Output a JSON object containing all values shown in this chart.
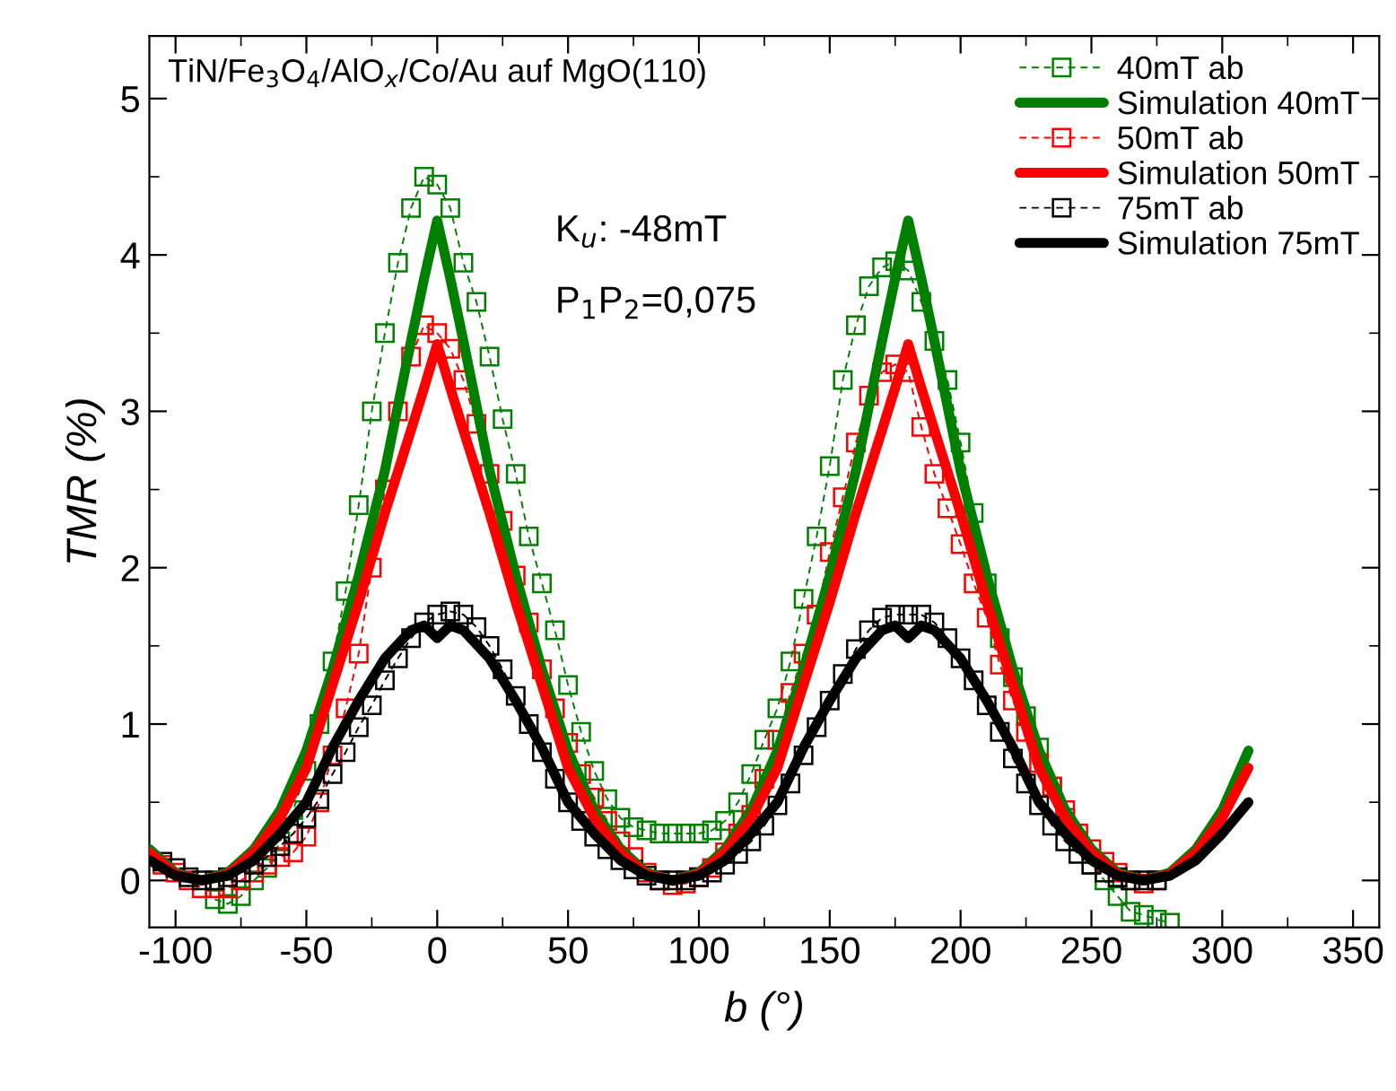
{
  "chart_data": {
    "type": "line",
    "xlabel": "b (°)",
    "ylabel": "TMR (%)",
    "xlim": [
      -110,
      360
    ],
    "ylim": [
      -0.3,
      5.4
    ],
    "xticks": [
      -100,
      -50,
      0,
      50,
      100,
      150,
      200,
      250,
      300,
      350
    ],
    "yticks": [
      0,
      1,
      2,
      3,
      4,
      5
    ],
    "grid": false,
    "legend": "top right",
    "annotations": [
      "TiN/Fe$_{3}$O$_{4}$/AlO$_{x}$/Co/Au auf MgO(110)",
      "K$_{u}$: -48mT",
      "P$_{1}$P$_{2}$=0,075"
    ],
    "series": [
      {
        "name": "40mT ab",
        "color": "#008000",
        "marker": "square",
        "line_style": "dashed",
        "x": [
          -85,
          -80,
          -75,
          -70,
          -65,
          -60,
          -55,
          -50,
          -45,
          -40,
          -35,
          -30,
          -25,
          -20,
          -15,
          -10,
          -5,
          0,
          5,
          10,
          15,
          20,
          25,
          30,
          35,
          40,
          45,
          50,
          55,
          60,
          65,
          70,
          75,
          80,
          85,
          90,
          95,
          100,
          105,
          110,
          115,
          120,
          125,
          130,
          135,
          140,
          145,
          150,
          155,
          160,
          165,
          170,
          175,
          180,
          185,
          190,
          195,
          200,
          205,
          210,
          215,
          220,
          225,
          230,
          235,
          240,
          245,
          250,
          255,
          260,
          265,
          270,
          275,
          280
        ],
        "values": [
          -0.12,
          -0.15,
          -0.1,
          0.0,
          0.08,
          0.25,
          0.45,
          0.7,
          1.0,
          1.4,
          1.85,
          2.4,
          3.0,
          3.5,
          3.95,
          4.3,
          4.5,
          4.45,
          4.3,
          3.95,
          3.7,
          3.35,
          2.95,
          2.6,
          2.2,
          1.9,
          1.6,
          1.25,
          0.95,
          0.7,
          0.52,
          0.4,
          0.34,
          0.32,
          0.3,
          0.3,
          0.3,
          0.3,
          0.32,
          0.38,
          0.5,
          0.68,
          0.9,
          1.1,
          1.4,
          1.8,
          2.2,
          2.65,
          3.2,
          3.55,
          3.8,
          3.92,
          3.96,
          3.9,
          3.7,
          3.45,
          3.2,
          2.8,
          2.35,
          1.9,
          1.55,
          1.3,
          1.05,
          0.85,
          0.6,
          0.4,
          0.25,
          0.1,
          0.0,
          -0.1,
          -0.2,
          -0.22,
          -0.25,
          -0.27
        ]
      },
      {
        "name": "Simulation 40mT",
        "color": "#008000",
        "marker": "none",
        "line_style": "solid",
        "x": [
          -110,
          -100,
          -90,
          -80,
          -70,
          -60,
          -50,
          -40,
          -30,
          -20,
          -10,
          -5,
          0,
          5,
          10,
          20,
          30,
          40,
          50,
          60,
          70,
          80,
          90,
          100,
          110,
          120,
          130,
          140,
          150,
          160,
          170,
          175,
          180,
          185,
          190,
          200,
          210,
          220,
          230,
          240,
          250,
          260,
          270,
          280,
          290,
          300,
          310
        ],
        "values": [
          0.2,
          0.05,
          0,
          0.05,
          0.2,
          0.45,
          0.83,
          1.35,
          1.95,
          2.62,
          3.45,
          3.85,
          4.22,
          3.85,
          3.45,
          2.62,
          1.95,
          1.35,
          0.83,
          0.45,
          0.2,
          0.05,
          0,
          0.05,
          0.2,
          0.45,
          0.83,
          1.35,
          1.95,
          2.62,
          3.45,
          3.85,
          4.22,
          3.85,
          3.45,
          2.62,
          1.95,
          1.35,
          0.83,
          0.45,
          0.2,
          0.05,
          0,
          0.05,
          0.2,
          0.45,
          0.83
        ]
      },
      {
        "name": "50mT ab",
        "color": "#ff0000",
        "marker": "square",
        "line_style": "dashed",
        "x": [
          -105,
          -100,
          -95,
          -90,
          -85,
          -80,
          -75,
          -70,
          -65,
          -60,
          -55,
          -50,
          -45,
          -40,
          -35,
          -30,
          -25,
          -20,
          -15,
          -10,
          -5,
          0,
          5,
          10,
          15,
          20,
          25,
          30,
          35,
          40,
          45,
          50,
          55,
          60,
          65,
          70,
          75,
          80,
          85,
          90,
          95,
          100,
          105,
          110,
          115,
          120,
          125,
          130,
          135,
          140,
          145,
          150,
          155,
          160,
          165,
          170,
          175,
          180,
          185,
          190,
          195,
          200,
          205,
          210,
          215,
          220,
          225,
          230,
          235,
          240,
          245,
          250,
          255,
          260,
          265,
          270,
          275
        ],
        "values": [
          0.1,
          0.05,
          0.0,
          -0.05,
          -0.05,
          -0.05,
          0.0,
          0.05,
          0.1,
          0.15,
          0.18,
          0.28,
          0.5,
          0.8,
          1.1,
          1.45,
          2.0,
          2.5,
          3.0,
          3.35,
          3.55,
          3.5,
          3.4,
          3.2,
          2.92,
          2.6,
          2.3,
          1.95,
          1.65,
          1.35,
          1.1,
          0.88,
          0.68,
          0.53,
          0.38,
          0.25,
          0.15,
          0.05,
          0.0,
          -0.03,
          -0.02,
          0.02,
          0.08,
          0.18,
          0.3,
          0.42,
          0.65,
          0.9,
          1.2,
          1.45,
          1.7,
          2.1,
          2.45,
          2.8,
          3.1,
          3.25,
          3.3,
          3.25,
          2.9,
          2.6,
          2.38,
          2.15,
          1.9,
          1.68,
          1.38,
          1.15,
          0.95,
          0.75,
          0.6,
          0.45,
          0.3,
          0.2,
          0.12,
          0.05,
          0.0,
          -0.02,
          0.0
        ]
      },
      {
        "name": "Simulation 50mT",
        "color": "#ff0000",
        "marker": "none",
        "line_style": "solid",
        "x": [
          -110,
          -100,
          -90,
          -80,
          -70,
          -60,
          -50,
          -40,
          -30,
          -20,
          -10,
          -5,
          0,
          5,
          10,
          20,
          30,
          40,
          50,
          60,
          70,
          80,
          90,
          100,
          110,
          120,
          130,
          140,
          150,
          160,
          170,
          175,
          180,
          185,
          190,
          200,
          210,
          220,
          230,
          240,
          250,
          260,
          270,
          280,
          290,
          300,
          310
        ],
        "values": [
          0.18,
          0.04,
          0,
          0.04,
          0.18,
          0.4,
          0.72,
          1.25,
          1.78,
          2.35,
          2.88,
          3.15,
          3.43,
          3.15,
          2.88,
          2.35,
          1.78,
          1.25,
          0.72,
          0.4,
          0.18,
          0.04,
          0,
          0.04,
          0.18,
          0.4,
          0.72,
          1.25,
          1.78,
          2.35,
          2.88,
          3.15,
          3.43,
          3.15,
          2.88,
          2.35,
          1.78,
          1.25,
          0.72,
          0.4,
          0.18,
          0.04,
          0,
          0.04,
          0.18,
          0.4,
          0.72
        ]
      },
      {
        "name": "75mT ab",
        "color": "#000000",
        "marker": "square",
        "line_style": "dashed",
        "x": [
          -105,
          -100,
          -95,
          -90,
          -85,
          -80,
          -75,
          -70,
          -65,
          -60,
          -55,
          -50,
          -45,
          -40,
          -35,
          -30,
          -25,
          -20,
          -15,
          -10,
          -5,
          0,
          5,
          10,
          15,
          20,
          25,
          30,
          35,
          40,
          45,
          50,
          55,
          60,
          65,
          70,
          75,
          80,
          85,
          90,
          95,
          100,
          105,
          110,
          115,
          120,
          125,
          130,
          135,
          140,
          145,
          150,
          155,
          160,
          165,
          170,
          175,
          180,
          185,
          190,
          195,
          200,
          205,
          210,
          215,
          220,
          225,
          230,
          235,
          240,
          245,
          250,
          255,
          260,
          265,
          270,
          275
        ],
        "values": [
          0.12,
          0.08,
          0.02,
          0.0,
          0.0,
          0.02,
          0.05,
          0.1,
          0.15,
          0.22,
          0.3,
          0.4,
          0.52,
          0.68,
          0.82,
          0.98,
          1.12,
          1.28,
          1.42,
          1.55,
          1.65,
          1.7,
          1.72,
          1.7,
          1.62,
          1.5,
          1.35,
          1.18,
          1.0,
          0.82,
          0.65,
          0.5,
          0.38,
          0.28,
          0.2,
          0.13,
          0.07,
          0.03,
          0.0,
          0.0,
          0.0,
          0.02,
          0.05,
          0.1,
          0.17,
          0.25,
          0.35,
          0.48,
          0.62,
          0.8,
          0.98,
          1.15,
          1.32,
          1.48,
          1.6,
          1.68,
          1.7,
          1.7,
          1.7,
          1.65,
          1.55,
          1.42,
          1.28,
          1.12,
          0.95,
          0.78,
          0.62,
          0.48,
          0.35,
          0.25,
          0.17,
          0.1,
          0.05,
          0.02,
          0.0,
          0.0,
          0.0
        ]
      },
      {
        "name": "Simulation 75mT",
        "color": "#000000",
        "marker": "none",
        "line_style": "solid",
        "x": [
          -110,
          -100,
          -90,
          -80,
          -70,
          -60,
          -50,
          -40,
          -30,
          -20,
          -10,
          -5,
          0,
          5,
          10,
          20,
          30,
          40,
          50,
          60,
          70,
          80,
          90,
          100,
          110,
          120,
          130,
          140,
          150,
          160,
          170,
          175,
          180,
          185,
          190,
          200,
          210,
          220,
          230,
          240,
          250,
          260,
          270,
          280,
          290,
          300,
          310
        ],
        "values": [
          0.13,
          0.03,
          0,
          0.03,
          0.13,
          0.3,
          0.5,
          0.85,
          1.15,
          1.42,
          1.6,
          1.63,
          1.55,
          1.63,
          1.6,
          1.42,
          1.15,
          0.85,
          0.5,
          0.3,
          0.13,
          0.03,
          0,
          0.03,
          0.13,
          0.3,
          0.5,
          0.85,
          1.15,
          1.42,
          1.6,
          1.63,
          1.55,
          1.63,
          1.6,
          1.42,
          1.15,
          0.85,
          0.5,
          0.3,
          0.13,
          0.03,
          0,
          0.03,
          0.13,
          0.3,
          0.5
        ]
      }
    ]
  }
}
